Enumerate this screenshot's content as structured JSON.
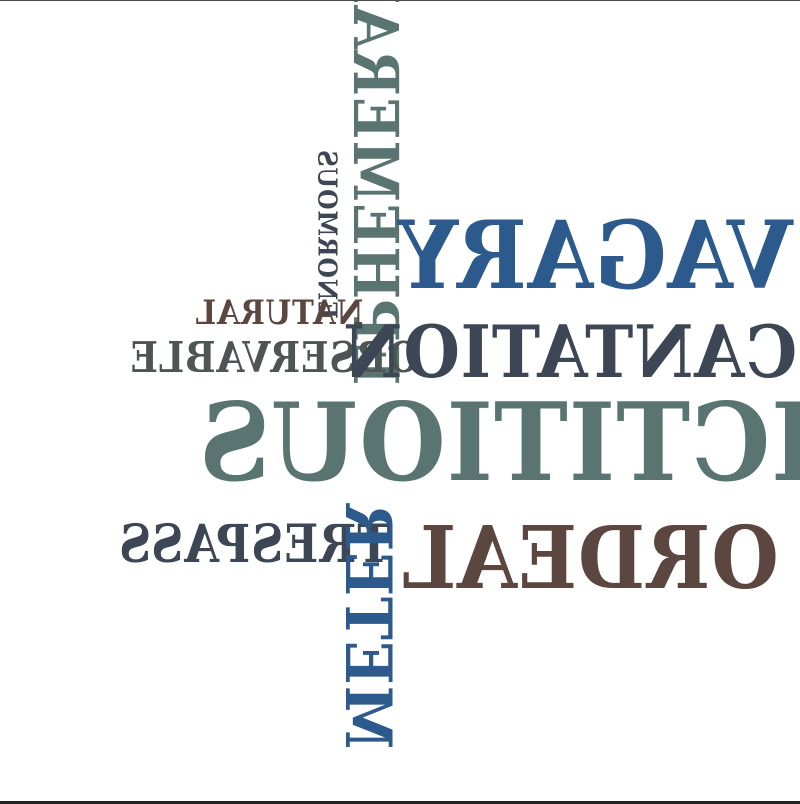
{
  "words": {
    "fictitious": "FICTITIOUS",
    "incantation": "INCANTATION",
    "vagary": "VAGARY",
    "ordeal": "ORDEAL",
    "observable": "OBSERVABLE",
    "natural": "NATURAL",
    "trespass": "TRESPASS",
    "ephemeral": "EPHEMERAL",
    "meter": "METER",
    "enormous": "ENORMOUS"
  },
  "colors": {
    "teal_gray": "#5a7472",
    "slate": "#3c4654",
    "blue": "#2d5a8c",
    "brown": "#5b4640",
    "gray": "#4e5555"
  }
}
